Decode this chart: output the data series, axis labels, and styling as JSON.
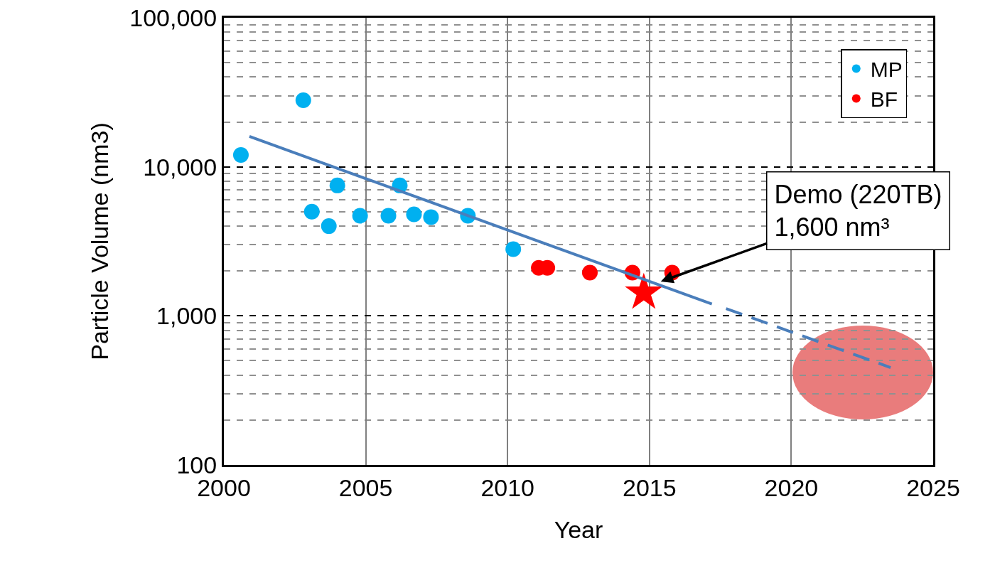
{
  "chart_data": {
    "type": "scatter",
    "xlabel": "Year",
    "ylabel": "Particle Volume (nm3)",
    "log": "y",
    "grid": true,
    "legend": "top right",
    "marker": "circle",
    "xlim": [
      2000,
      2025
    ],
    "xticks": [
      2000,
      2005,
      2010,
      2015,
      2020,
      2025
    ],
    "ylim": [
      100,
      100000
    ],
    "yticks": [
      100,
      {
        "value": 1000,
        "label": "1,000"
      },
      {
        "value": 10000,
        "label": "10,000"
      },
      {
        "value": 100000,
        "label": "100,000"
      }
    ],
    "series": [
      {
        "name": "MP",
        "color": "#00b0f0",
        "x": [
          2000.6,
          2002.8,
          2003.1,
          2003.7,
          2004.0,
          2004.8,
          2005.8,
          2006.2,
          2006.7,
          2007.3,
          2008.6,
          2010.2
        ],
        "values": [
          12000,
          28000,
          5000,
          4000,
          7500,
          4700,
          4700,
          7500,
          4800,
          4600,
          4700,
          2800
        ]
      },
      {
        "name": "BF",
        "color": "#ff0000",
        "x": [
          2011.1,
          2011.4,
          2012.9,
          2014.4,
          2015.8
        ],
        "values": [
          2100,
          2100,
          1950,
          1950,
          1950
        ]
      },
      {
        "type": "scatter",
        "marker": "star",
        "color": "#ff0000",
        "x": [
          2014.8
        ],
        "values": [
          1430
        ]
      },
      {
        "type": "line",
        "marker": "none",
        "line_style": "solid",
        "color": "#4a7ebb",
        "x": [
          2000.9,
          2017.2
        ],
        "values": [
          16000,
          1200
        ]
      },
      {
        "type": "line",
        "marker": "none",
        "line_style": "dashed",
        "color": "#4a7ebb",
        "x": [
          2017.7,
          2023.5
        ],
        "values": [
          1120,
          450
        ]
      }
    ],
    "annotations": [
      {
        "text": "Demo (220TB)\n1,600 nm³",
        "x": 2015.4,
        "y": 1700
      }
    ]
  }
}
